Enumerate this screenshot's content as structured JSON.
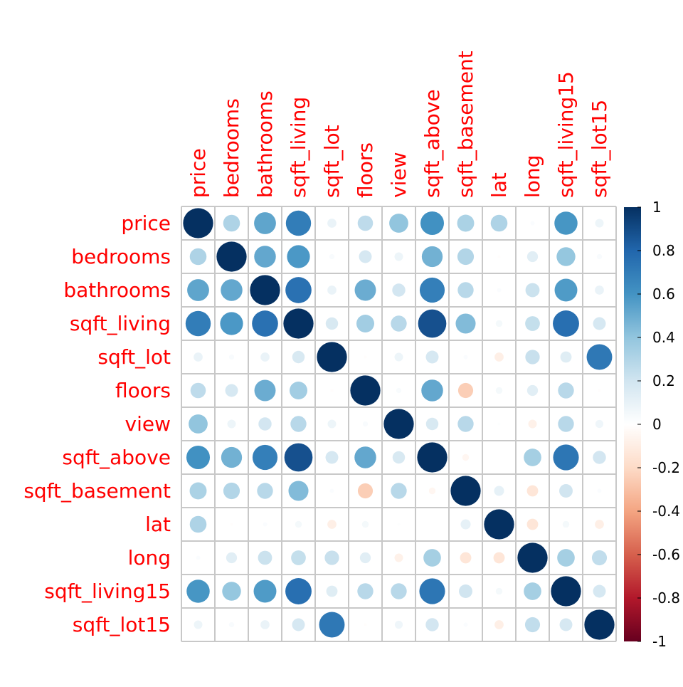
{
  "chart_data": {
    "type": "heatmap",
    "method": "circle",
    "variables": [
      "price",
      "bedrooms",
      "bathrooms",
      "sqft_living",
      "sqft_lot",
      "floors",
      "view",
      "sqft_above",
      "sqft_basement",
      "lat",
      "long",
      "sqft_living15",
      "sqft_lot15"
    ],
    "matrix": [
      [
        1.0,
        0.31,
        0.53,
        0.7,
        0.09,
        0.26,
        0.4,
        0.61,
        0.32,
        0.31,
        0.02,
        0.59,
        0.08
      ],
      [
        0.31,
        1.0,
        0.52,
        0.58,
        0.03,
        0.18,
        0.08,
        0.48,
        0.3,
        -0.01,
        0.13,
        0.39,
        0.03
      ],
      [
        0.53,
        0.52,
        1.0,
        0.75,
        0.09,
        0.5,
        0.19,
        0.69,
        0.28,
        0.02,
        0.22,
        0.57,
        0.09
      ],
      [
        0.7,
        0.58,
        0.75,
        1.0,
        0.17,
        0.35,
        0.28,
        0.88,
        0.44,
        0.05,
        0.24,
        0.76,
        0.18
      ],
      [
        0.09,
        0.03,
        0.09,
        0.17,
        1.0,
        -0.01,
        0.08,
        0.18,
        0.02,
        -0.09,
        0.23,
        0.14,
        0.72
      ],
      [
        0.26,
        0.18,
        0.5,
        0.35,
        -0.01,
        1.0,
        0.03,
        0.52,
        -0.25,
        0.05,
        0.13,
        0.28,
        -0.01
      ],
      [
        0.4,
        0.08,
        0.19,
        0.28,
        0.08,
        0.03,
        1.0,
        0.17,
        0.28,
        0.01,
        -0.08,
        0.28,
        0.07
      ],
      [
        0.61,
        0.48,
        0.69,
        0.88,
        0.18,
        0.52,
        0.17,
        1.0,
        -0.05,
        -0.0,
        0.34,
        0.73,
        0.19
      ],
      [
        0.32,
        0.3,
        0.28,
        0.44,
        0.02,
        -0.25,
        0.28,
        -0.05,
        1.0,
        0.11,
        -0.14,
        0.2,
        0.02
      ],
      [
        0.31,
        -0.01,
        0.02,
        0.05,
        -0.09,
        0.05,
        0.01,
        -0.0,
        0.11,
        1.0,
        -0.14,
        0.05,
        -0.09
      ],
      [
        0.02,
        0.13,
        0.22,
        0.24,
        0.23,
        0.13,
        -0.08,
        0.34,
        -0.14,
        -0.14,
        1.0,
        0.34,
        0.25
      ],
      [
        0.59,
        0.39,
        0.57,
        0.76,
        0.14,
        0.28,
        0.28,
        0.73,
        0.2,
        0.05,
        0.34,
        1.0,
        0.18
      ],
      [
        0.08,
        0.03,
        0.09,
        0.18,
        0.72,
        -0.01,
        0.07,
        0.19,
        0.02,
        -0.09,
        0.25,
        0.18,
        1.0
      ]
    ],
    "colorbar": {
      "min": -1,
      "max": 1,
      "ticks": [
        "1",
        "0.8",
        "0.6",
        "0.4",
        "0.2",
        "0",
        "-0.2",
        "-0.4",
        "-0.6",
        "-0.8",
        "-1"
      ],
      "palette": [
        "#67001F",
        "#B2182B",
        "#D6604D",
        "#F4A582",
        "#FDDBC7",
        "#FFFFFF",
        "#D1E5F0",
        "#92C5DE",
        "#4393C3",
        "#2166AC",
        "#053061"
      ]
    },
    "label_color": "#FF0000",
    "grid_color": "#C8C8C8",
    "grid": true,
    "legend_placement": "right"
  }
}
